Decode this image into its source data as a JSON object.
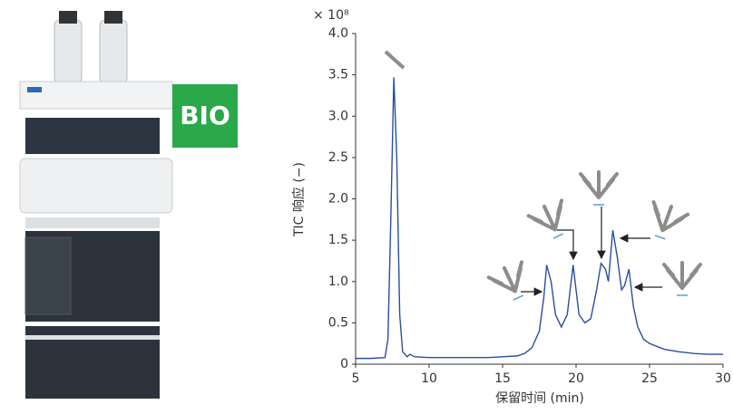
{
  "badge": "BIO",
  "chart_data": {
    "type": "line",
    "multiplier": "× 10⁸",
    "ylabel": "TIC 响应 (−)",
    "xlabel": "保留时间 (min)",
    "xlim": [
      5,
      30
    ],
    "xticks": [
      5,
      10,
      15,
      20,
      25,
      30
    ],
    "ylim": [
      0,
      4.0
    ],
    "yticks": [
      0,
      0.5,
      {
        "value": 1,
        "label": "1.0"
      },
      1.5,
      {
        "value": 2,
        "label": "2.0"
      },
      2.5,
      {
        "value": 3,
        "label": "3.0"
      },
      3.5,
      {
        "value": 4,
        "label": "4.0"
      }
    ],
    "series": [
      {
        "color": "#2a4ea0",
        "x": [
          5,
          6,
          7,
          7.2,
          7.4,
          7.6,
          7.8,
          8.0,
          8.2,
          8.5,
          8.7,
          9,
          10,
          12,
          14,
          15,
          16,
          16.5,
          17,
          17.5,
          17.8,
          18.0,
          18.3,
          18.6,
          19,
          19.4,
          19.8,
          20.2,
          20.6,
          21,
          21.4,
          21.7,
          22.0,
          22.2,
          22.5,
          22.8,
          23.1,
          23.3,
          23.6,
          23.9,
          24.2,
          24.6,
          25,
          26,
          27,
          28,
          29,
          30
        ],
        "values": [
          0.07,
          0.07,
          0.08,
          0.3,
          1.8,
          3.47,
          2.5,
          0.6,
          0.15,
          0.09,
          0.12,
          0.09,
          0.08,
          0.08,
          0.08,
          0.09,
          0.1,
          0.13,
          0.2,
          0.4,
          0.8,
          1.2,
          1.0,
          0.6,
          0.45,
          0.6,
          1.2,
          0.6,
          0.5,
          0.55,
          0.9,
          1.22,
          1.15,
          1.0,
          1.62,
          1.3,
          0.9,
          0.95,
          1.15,
          0.7,
          0.45,
          0.3,
          0.25,
          0.18,
          0.15,
          0.13,
          0.12,
          0.12
        ]
      }
    ]
  }
}
